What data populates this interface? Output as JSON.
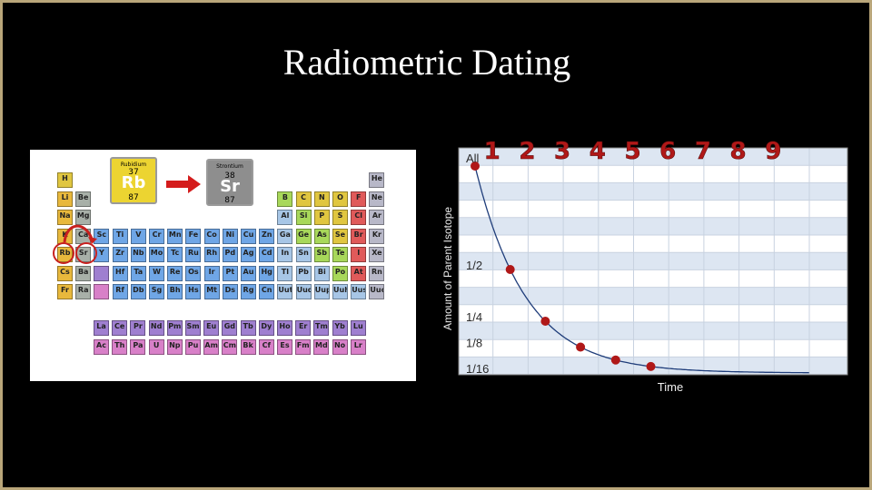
{
  "slide": {
    "title": "Radiometric Dating"
  },
  "periodic_table": {
    "rubidium": {
      "name": "Rubidium",
      "number": "37",
      "symbol": "Rb",
      "mass": "87"
    },
    "strontium": {
      "name": "Strontium",
      "number": "38",
      "symbol": "Sr",
      "mass": "87"
    },
    "rows": [
      [
        "H",
        "",
        "",
        "",
        "",
        "",
        "",
        "",
        "",
        "",
        "",
        "",
        "",
        "",
        "",
        "",
        "",
        "He"
      ],
      [
        "Li",
        "Be",
        "",
        "",
        "",
        "",
        "",
        "",
        "",
        "",
        "",
        "",
        "B",
        "C",
        "N",
        "O",
        "F",
        "Ne"
      ],
      [
        "Na",
        "Mg",
        "",
        "",
        "",
        "",
        "",
        "",
        "",
        "",
        "",
        "",
        "Al",
        "Si",
        "P",
        "S",
        "Cl",
        "Ar"
      ],
      [
        "K",
        "Ca",
        "Sc",
        "Ti",
        "V",
        "Cr",
        "Mn",
        "Fe",
        "Co",
        "Ni",
        "Cu",
        "Zn",
        "Ga",
        "Ge",
        "As",
        "Se",
        "Br",
        "Kr"
      ],
      [
        "Rb",
        "Sr",
        "Y",
        "Zr",
        "Nb",
        "Mo",
        "Tc",
        "Ru",
        "Rh",
        "Pd",
        "Ag",
        "Cd",
        "In",
        "Sn",
        "Sb",
        "Te",
        "I",
        "Xe"
      ],
      [
        "Cs",
        "Ba",
        "",
        "Hf",
        "Ta",
        "W",
        "Re",
        "Os",
        "Ir",
        "Pt",
        "Au",
        "Hg",
        "Tl",
        "Pb",
        "Bi",
        "Po",
        "At",
        "Rn"
      ],
      [
        "Fr",
        "Ra",
        "",
        "Rf",
        "Db",
        "Sg",
        "Bh",
        "Hs",
        "Mt",
        "Ds",
        "Rg",
        "Cn",
        "Uut",
        "Uuq",
        "Uup",
        "Uuh",
        "Uus",
        "Uuo"
      ]
    ],
    "lanthanides": [
      "La",
      "Ce",
      "Pr",
      "Nd",
      "Pm",
      "Sm",
      "Eu",
      "Gd",
      "Tb",
      "Dy",
      "Ho",
      "Er",
      "Tm",
      "Yb",
      "Lu"
    ],
    "actinides": [
      "Ac",
      "Th",
      "Pa",
      "U",
      "Np",
      "Pu",
      "Am",
      "Cm",
      "Bk",
      "Cf",
      "Es",
      "Fm",
      "Md",
      "No",
      "Lr"
    ],
    "colors": {
      "alkali": "#e8b83c",
      "alkaline": "#a8b0a8",
      "transition": "#6fa6e6",
      "post": "#a7c6e6",
      "metalloid": "#a8d85a",
      "nonmetal": "#e0c640",
      "halogen": "#e05a5a",
      "noble": "#b8b8c8",
      "lanthanide": "#9f7fd0",
      "actinide": "#d880c8",
      "highlight": "#c8201e"
    }
  },
  "chart_data": {
    "type": "line",
    "ylabel": "Amount of Parent Isotope",
    "xlabel": "Time",
    "half_life_labels": [
      "1",
      "2",
      "3",
      "4",
      "5",
      "6",
      "7",
      "8",
      "9"
    ],
    "y_tick_labels": [
      "All",
      "1/2",
      "1/4",
      "1/8",
      "1/16"
    ],
    "x": [
      0,
      1,
      2,
      3,
      4,
      5
    ],
    "values": [
      1,
      0.5,
      0.25,
      0.125,
      0.0625,
      0.03125
    ],
    "curve": "exponential decay",
    "x_range": [
      0,
      9.5
    ],
    "y_range": [
      0,
      1
    ],
    "colors": {
      "curve": "#1f3d7a",
      "marker": "#b01818",
      "label": "#b01818",
      "grid": "#c8d2e0",
      "band": "#dde6f2"
    }
  }
}
